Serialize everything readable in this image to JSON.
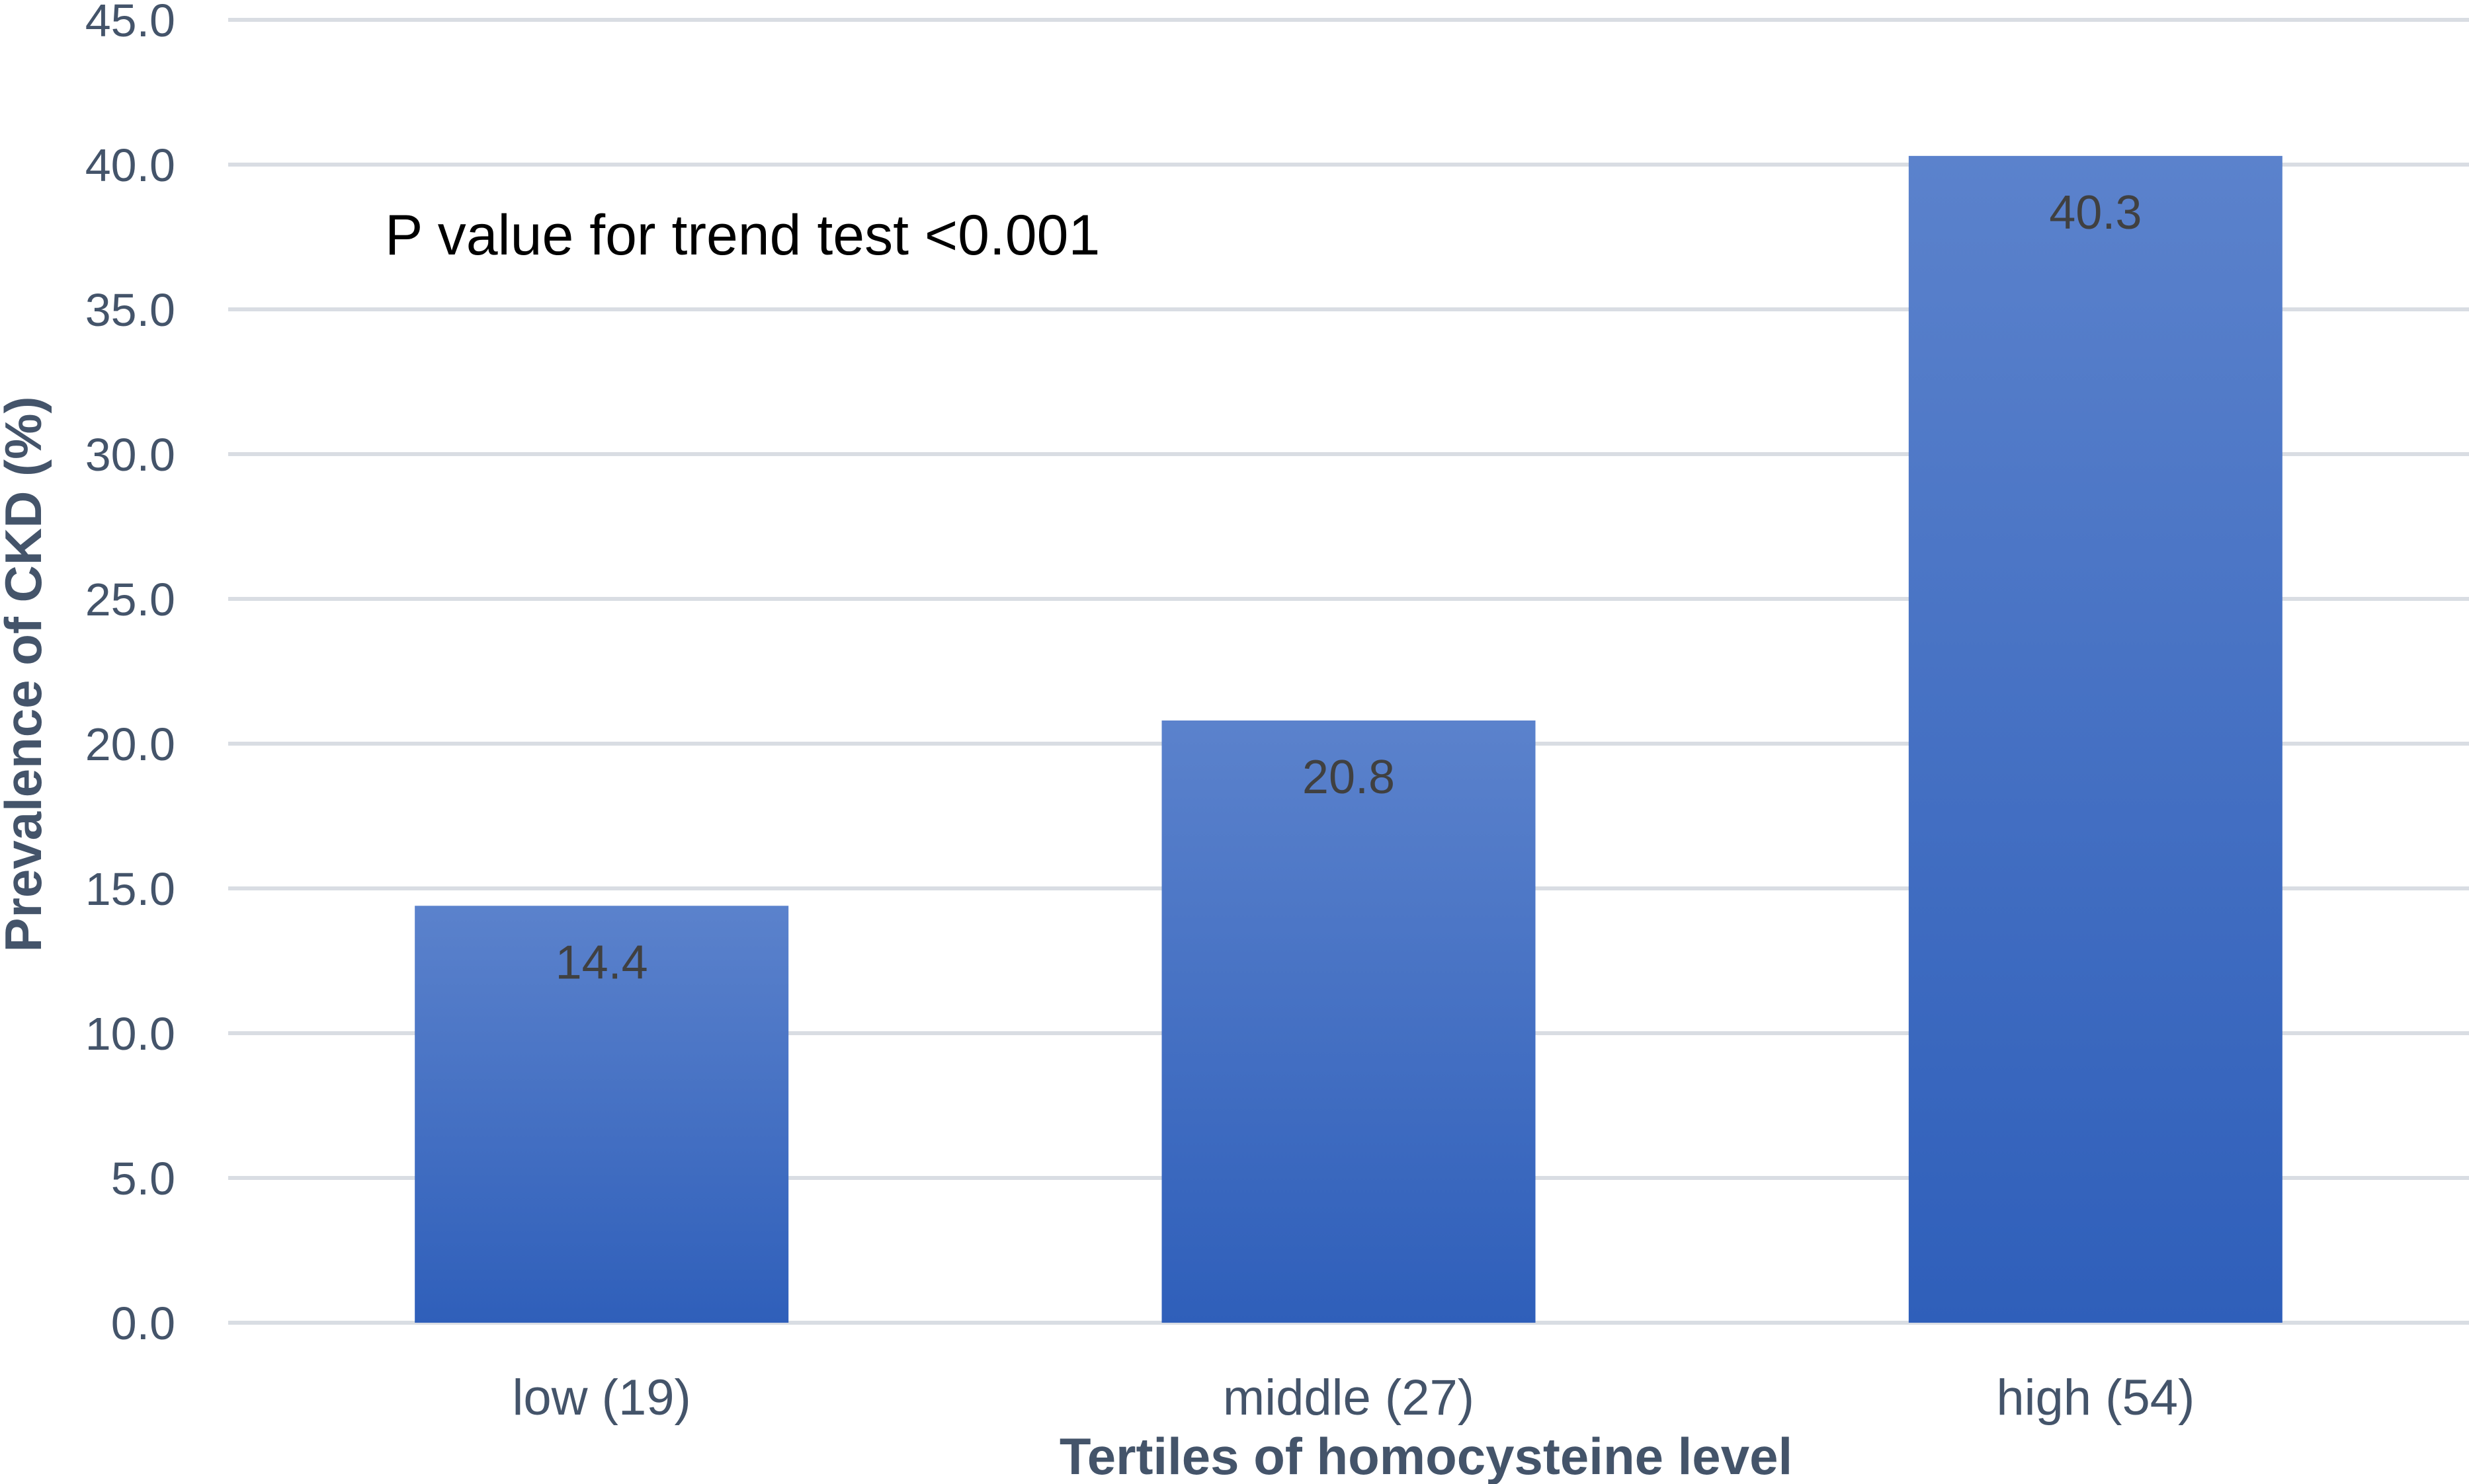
{
  "chart_data": {
    "type": "bar",
    "title": "",
    "categories": [
      "low (19)",
      "middle (27)",
      "high (54)"
    ],
    "values": [
      14.4,
      20.8,
      40.3
    ],
    "data_labels": [
      "14.4",
      "20.8",
      "40.3"
    ],
    "xlabel": "Tertiles of homocysteine level",
    "ylabel": "Prevalence of CKD (%)",
    "ylim": [
      0,
      45
    ],
    "yticks": [
      "0.0",
      "5.0",
      "10.0",
      "15.0",
      "20.0",
      "25.0",
      "30.0",
      "35.0",
      "40.0",
      "45.0"
    ],
    "annotation": "P value for trend test <0.001",
    "grid": true,
    "legend": "none",
    "colors": {
      "bar_top": "#5b82cc",
      "bar_bottom": "#2f5fba",
      "grid": "#d9dde3",
      "axis_text": "#44546a",
      "data_label": "#404040"
    }
  }
}
